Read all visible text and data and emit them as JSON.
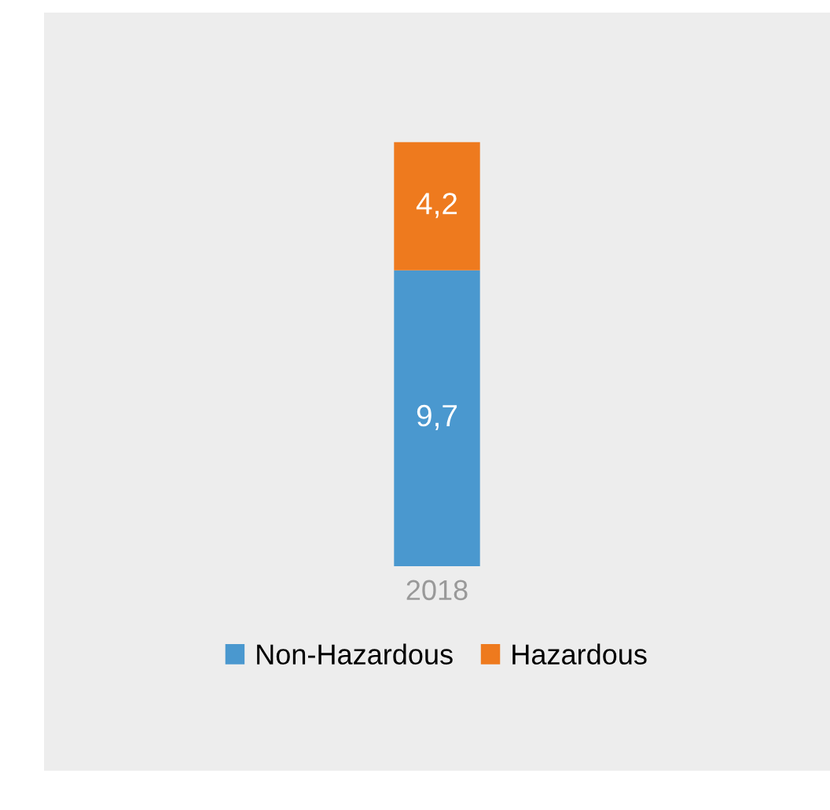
{
  "chart_data": {
    "type": "bar",
    "stacked": true,
    "categories": [
      "2018"
    ],
    "series": [
      {
        "name": "Non-Hazardous",
        "color": "#4a98cf",
        "values": [
          9.7
        ],
        "value_labels": [
          "9,7"
        ]
      },
      {
        "name": "Hazardous",
        "color": "#ee7a1e",
        "values": [
          4.2
        ],
        "value_labels": [
          "4,2"
        ]
      }
    ],
    "legend": "bottom",
    "grid": false
  }
}
